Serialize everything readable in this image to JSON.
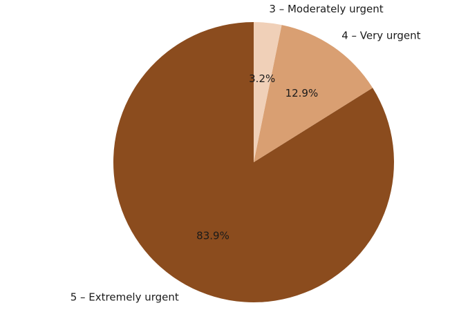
{
  "chart_data": {
    "type": "pie",
    "title": "",
    "slices": [
      {
        "label": "5 – Extremely urgent",
        "value": 83.9,
        "pct_label": "83.9%",
        "color": "#8b4c1e"
      },
      {
        "label": "4 – Very urgent",
        "value": 12.9,
        "pct_label": "12.9%",
        "color": "#d99f72"
      },
      {
        "label": "3 – Moderately urgent",
        "value": 3.2,
        "pct_label": "3.2%",
        "color": "#f0d0b8"
      }
    ],
    "startangle_deg": 90,
    "direction": "counterclockwise"
  }
}
